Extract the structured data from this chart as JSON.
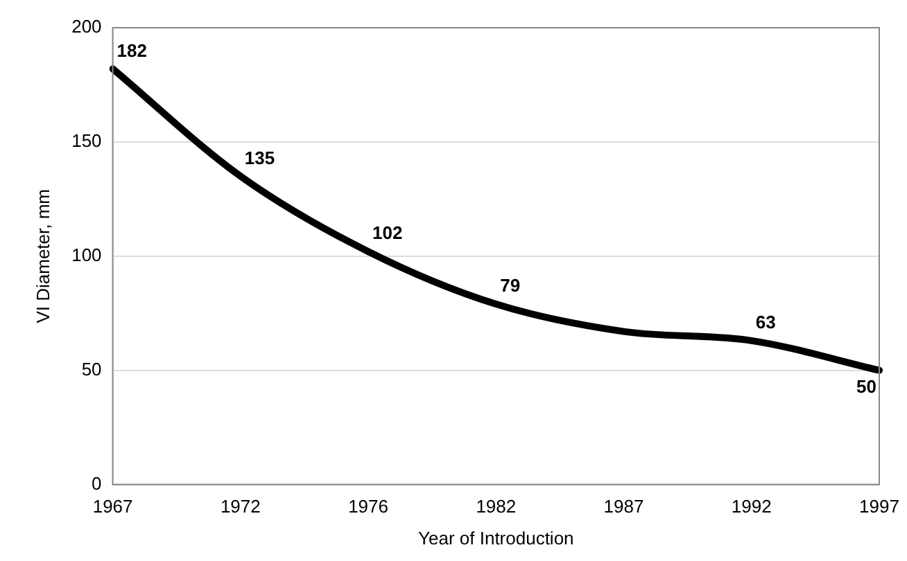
{
  "chart_data": {
    "type": "line",
    "xlabel": "Year of Introduction",
    "ylabel": "VI Diameter, mm",
    "categories": [
      "1967",
      "1972",
      "1976",
      "1982",
      "1987",
      "1992",
      "1997"
    ],
    "series": [
      {
        "color": "#000000",
        "values": [
          182,
          135,
          102,
          79,
          67,
          63,
          50
        ],
        "value_labels": [
          "182",
          "135",
          "102",
          "79",
          null,
          "63",
          "50"
        ]
      }
    ],
    "ylim": [
      0,
      200
    ],
    "yticks": [
      0,
      50,
      100,
      150,
      200
    ],
    "grid": "y",
    "legend": false,
    "marker": "none",
    "line_style": "solid"
  }
}
